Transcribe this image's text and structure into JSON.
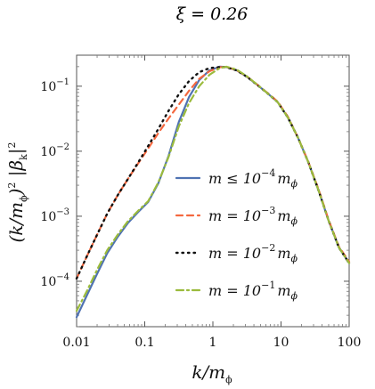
{
  "chart_data": {
    "type": "line",
    "title": "ξ = 0.26",
    "xlabel": "k/m_ϕ",
    "ylabel": "(k/m_ϕ)² |β_k|²",
    "xscale": "log",
    "yscale": "log",
    "xlim": [
      0.01,
      100
    ],
    "ylim": [
      2e-05,
      0.3
    ],
    "grid": false,
    "legend_position": "center-right",
    "x_ticks": [
      {
        "value": 0.01,
        "label": "0.01"
      },
      {
        "value": 0.1,
        "label": "0.1"
      },
      {
        "value": 1,
        "label": "1"
      },
      {
        "value": 10,
        "label": "10"
      },
      {
        "value": 100,
        "label": "100"
      }
    ],
    "y_ticks": [
      {
        "value": 0.0001,
        "base": "10",
        "exp": "−4"
      },
      {
        "value": 0.001,
        "base": "10",
        "exp": "−3"
      },
      {
        "value": 0.01,
        "base": "10",
        "exp": "−2"
      },
      {
        "value": 0.1,
        "base": "10",
        "exp": "−1"
      }
    ],
    "series": [
      {
        "name": "m ≤ 10⁻⁴ m_ϕ",
        "legend_main": "m ≤ 10",
        "legend_exp": "−4",
        "legend_tail": "m",
        "legend_sub": "ϕ",
        "color": "#4f72b2",
        "dash": "",
        "width": 2.2,
        "x": [
          0.01,
          0.0141,
          0.02,
          0.0282,
          0.04,
          0.0562,
          0.0794,
          0.112,
          0.158,
          0.224,
          0.316,
          0.447,
          0.631,
          0.891,
          1.26,
          1.58,
          2.24,
          3.16,
          4.47,
          6.31,
          8.91,
          12.6,
          17.8,
          25.1,
          35.5,
          50.1,
          70.8,
          100
        ],
        "y": [
          2.8e-05,
          6e-05,
          0.00013,
          0.00027,
          0.00048,
          0.00078,
          0.00115,
          0.00165,
          0.0032,
          0.0085,
          0.028,
          0.068,
          0.125,
          0.175,
          0.2,
          0.197,
          0.175,
          0.14,
          0.105,
          0.078,
          0.057,
          0.033,
          0.016,
          0.0068,
          0.0025,
          0.00085,
          0.00033,
          0.00019
        ]
      },
      {
        "name": "m = 10⁻³ m_ϕ",
        "legend_main": "m = 10",
        "legend_exp": "−3",
        "legend_tail": "m",
        "legend_sub": "ϕ",
        "color": "#f4683f",
        "dash": "7 5",
        "width": 2.2,
        "x": [
          0.01,
          0.0141,
          0.02,
          0.0282,
          0.04,
          0.0562,
          0.0794,
          0.112,
          0.158,
          0.224,
          0.316,
          0.447,
          0.631,
          0.891,
          1.26,
          1.58,
          2.24,
          3.16,
          4.47,
          6.31,
          8.91,
          12.6,
          17.8,
          25.1,
          35.5,
          50.1,
          70.8,
          100
        ],
        "y": [
          0.00011,
          0.00024,
          0.00052,
          0.0011,
          0.0021,
          0.0037,
          0.0064,
          0.011,
          0.019,
          0.032,
          0.052,
          0.085,
          0.13,
          0.17,
          0.196,
          0.197,
          0.176,
          0.141,
          0.106,
          0.079,
          0.058,
          0.034,
          0.016,
          0.0069,
          0.0026,
          0.00087,
          0.00034,
          0.0002
        ]
      },
      {
        "name": "m = 10⁻² m_ϕ",
        "legend_main": "m = 10",
        "legend_exp": "−2",
        "legend_tail": "m",
        "legend_sub": "ϕ",
        "color": "#111111",
        "dash": "1.5 5",
        "width": 2.4,
        "x": [
          0.01,
          0.0141,
          0.02,
          0.0282,
          0.04,
          0.0562,
          0.0794,
          0.112,
          0.158,
          0.224,
          0.316,
          0.447,
          0.631,
          0.891,
          1.26,
          1.58,
          2.24,
          3.16,
          4.47,
          6.31,
          8.91,
          12.6,
          17.8,
          25.1,
          35.5,
          50.1,
          70.8,
          100
        ],
        "y": [
          0.00011,
          0.00024,
          0.00052,
          0.0011,
          0.0021,
          0.0037,
          0.0066,
          0.012,
          0.022,
          0.042,
          0.075,
          0.12,
          0.165,
          0.19,
          0.197,
          0.196,
          0.175,
          0.14,
          0.105,
          0.078,
          0.057,
          0.033,
          0.016,
          0.0068,
          0.0025,
          0.00085,
          0.00033,
          0.00019
        ]
      },
      {
        "name": "m = 10⁻¹ m_ϕ",
        "legend_main": "m = 10",
        "legend_exp": "−1",
        "legend_tail": "m",
        "legend_sub": "ϕ",
        "color": "#9bbb3c",
        "dash": "8 4 2 4",
        "width": 2.2,
        "x": [
          0.01,
          0.0141,
          0.02,
          0.0282,
          0.04,
          0.0562,
          0.0794,
          0.112,
          0.158,
          0.224,
          0.316,
          0.447,
          0.631,
          0.891,
          1.26,
          1.58,
          2.24,
          3.16,
          4.47,
          6.31,
          8.91,
          12.6,
          17.8,
          25.1,
          35.5,
          50.1,
          70.8,
          100
        ],
        "y": [
          3.5e-05,
          7e-05,
          0.00015,
          0.0003,
          0.00052,
          0.00083,
          0.0012,
          0.0017,
          0.0033,
          0.0082,
          0.024,
          0.055,
          0.1,
          0.15,
          0.19,
          0.2,
          0.18,
          0.142,
          0.106,
          0.078,
          0.057,
          0.033,
          0.016,
          0.0068,
          0.0025,
          0.00085,
          0.00033,
          0.00019
        ]
      }
    ]
  }
}
